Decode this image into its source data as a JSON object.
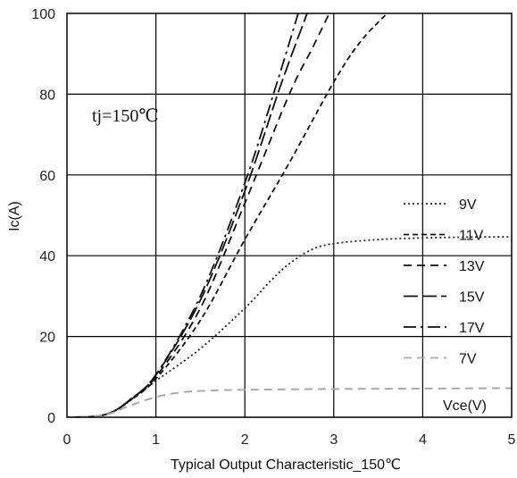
{
  "chart_data": {
    "type": "line",
    "title": "Typical Output Characteristic_150℃",
    "xlabel": "Vce(V)",
    "ylabel": "Ic(A)",
    "annotation": "tj=150℃",
    "xlim": [
      0,
      5
    ],
    "ylim": [
      0,
      100
    ],
    "xticks": [
      "0",
      "1",
      "2",
      "3",
      "4",
      "5"
    ],
    "yticks": [
      "0",
      "20",
      "40",
      "60",
      "80",
      "100"
    ],
    "grid": true,
    "legend_position": "right",
    "series": [
      {
        "name": "9V",
        "color": "#222222",
        "dash": "dotted",
        "points": [
          [
            0,
            0
          ],
          [
            0.3,
            0.2
          ],
          [
            0.5,
            1.2
          ],
          [
            0.7,
            4
          ],
          [
            1,
            9
          ],
          [
            1.5,
            17
          ],
          [
            2,
            27
          ],
          [
            2.3,
            34
          ],
          [
            2.5,
            38
          ],
          [
            2.75,
            41.5
          ],
          [
            3,
            43
          ],
          [
            3.5,
            44
          ],
          [
            4,
            44.4
          ],
          [
            4.5,
            44.6
          ],
          [
            5,
            44.7
          ]
        ]
      },
      {
        "name": "11V",
        "color": "#111111",
        "dash": "short-dash",
        "points": [
          [
            0,
            0
          ],
          [
            0.3,
            0.2
          ],
          [
            0.5,
            1.2
          ],
          [
            0.7,
            4
          ],
          [
            1,
            9.5
          ],
          [
            1.5,
            24
          ],
          [
            2,
            44
          ],
          [
            2.5,
            63
          ],
          [
            3,
            83
          ],
          [
            3.3,
            93
          ],
          [
            3.6,
            100
          ]
        ]
      },
      {
        "name": "13V",
        "color": "#111111",
        "dash": "dash",
        "points": [
          [
            0,
            0
          ],
          [
            0.3,
            0.2
          ],
          [
            0.5,
            1.2
          ],
          [
            0.7,
            4
          ],
          [
            1,
            10
          ],
          [
            1.5,
            27
          ],
          [
            2,
            53
          ],
          [
            2.5,
            80
          ],
          [
            2.75,
            91
          ],
          [
            2.95,
            100
          ]
        ]
      },
      {
        "name": "15V",
        "color": "#111111",
        "dash": "long-dash",
        "points": [
          [
            0,
            0
          ],
          [
            0.3,
            0.2
          ],
          [
            0.5,
            1.2
          ],
          [
            0.7,
            4.2
          ],
          [
            1,
            10.5
          ],
          [
            1.5,
            29
          ],
          [
            2,
            56
          ],
          [
            2.4,
            82
          ],
          [
            2.7,
            100
          ]
        ]
      },
      {
        "name": "17V",
        "color": "#111111",
        "dash": "dash-dot",
        "points": [
          [
            0,
            0
          ],
          [
            0.3,
            0.2
          ],
          [
            0.5,
            1.2
          ],
          [
            0.7,
            4.2
          ],
          [
            1,
            10.5
          ],
          [
            1.5,
            30
          ],
          [
            2,
            58
          ],
          [
            2.35,
            82
          ],
          [
            2.6,
            100
          ]
        ]
      },
      {
        "name": "7V",
        "color": "#a9a9a9",
        "dash": "dash",
        "points": [
          [
            0,
            0
          ],
          [
            0.3,
            0.2
          ],
          [
            0.5,
            1
          ],
          [
            0.7,
            2.8
          ],
          [
            1,
            5
          ],
          [
            1.3,
            6.2
          ],
          [
            1.6,
            6.6
          ],
          [
            2,
            6.8
          ],
          [
            3,
            7
          ],
          [
            4,
            7.1
          ],
          [
            5,
            7.2
          ]
        ]
      }
    ],
    "legend_order": [
      "9V",
      "11V",
      "13V",
      "15V",
      "17V",
      "7V"
    ]
  }
}
